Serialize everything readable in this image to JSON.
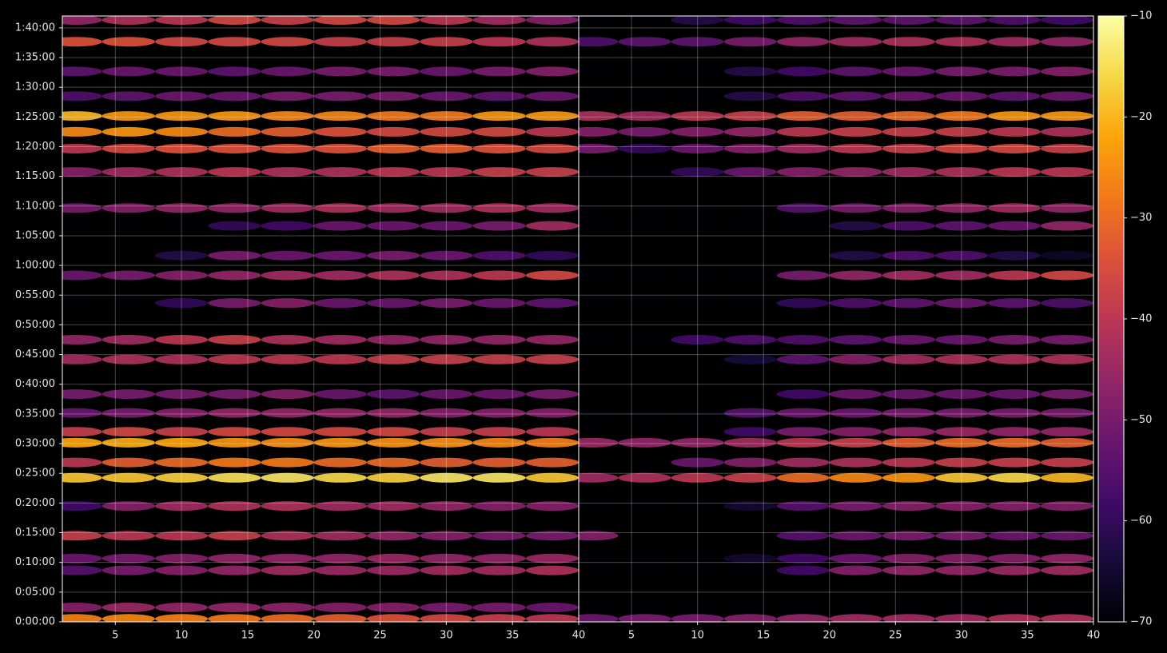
{
  "chart_data": {
    "type": "heatmap",
    "colormap": "inferno",
    "grid": true,
    "x": [
      2,
      6,
      10,
      14,
      18,
      22,
      26,
      30,
      34,
      38
    ],
    "xlim": [
      1,
      40
    ],
    "xticks": [
      5,
      10,
      15,
      20,
      25,
      30,
      35,
      40
    ],
    "y": [
      30,
      145,
      520,
      640,
      870,
      1170,
      1455,
      1610,
      1810,
      1920,
      2110,
      2300,
      2650,
      2850,
      3220,
      3500,
      3700,
      4000,
      4180,
      4545,
      4780,
      4950,
      5110,
      5310,
      5560,
      5860,
      6080
    ],
    "ylim": [
      0,
      6120
    ],
    "yticks": [
      {
        "value": 0,
        "label": "0:00:00"
      },
      {
        "value": 300,
        "label": "0:05:00"
      },
      {
        "value": 600,
        "label": "0:10:00"
      },
      {
        "value": 900,
        "label": "0:15:00"
      },
      {
        "value": 1200,
        "label": "0:20:00"
      },
      {
        "value": 1500,
        "label": "0:25:00"
      },
      {
        "value": 1800,
        "label": "0:30:00"
      },
      {
        "value": 2100,
        "label": "0:35:00"
      },
      {
        "value": 2400,
        "label": "0:40:00"
      },
      {
        "value": 2700,
        "label": "0:45:00"
      },
      {
        "value": 3000,
        "label": "0:50:00"
      },
      {
        "value": 3300,
        "label": "0:55:00"
      },
      {
        "value": 3600,
        "label": "1:00:00"
      },
      {
        "value": 3900,
        "label": "1:05:00"
      },
      {
        "value": 4200,
        "label": "1:10:00"
      },
      {
        "value": 4500,
        "label": "1:15:00"
      },
      {
        "value": 4800,
        "label": "1:20:00"
      },
      {
        "value": 5100,
        "label": "1:25:00"
      },
      {
        "value": 5400,
        "label": "1:30:00"
      },
      {
        "value": 5700,
        "label": "1:35:00"
      },
      {
        "value": 6000,
        "label": "1:40:00"
      }
    ],
    "colorbar": {
      "lim": [
        -70,
        -10
      ],
      "ticks": [
        {
          "value": -70,
          "label": "−70"
        },
        {
          "value": -60,
          "label": "−60"
        },
        {
          "value": -50,
          "label": "−50"
        },
        {
          "value": -40,
          "label": "−40"
        },
        {
          "value": -30,
          "label": "−30"
        },
        {
          "value": -20,
          "label": "−20"
        },
        {
          "value": -10,
          "label": "−10"
        }
      ]
    },
    "panels": [
      {
        "values": [
          [
            -27,
            -26,
            -27,
            -28,
            -30,
            -32,
            -34,
            -36,
            -38,
            -40
          ],
          [
            -48,
            -45,
            -46,
            -46,
            -47,
            -48,
            -48,
            -50,
            -50,
            -52
          ],
          [
            -55,
            -50,
            -48,
            -46,
            -44,
            -45,
            -45,
            -44,
            -44,
            -42
          ],
          [
            -52,
            -50,
            -48,
            -46,
            -46,
            -46,
            -45,
            -46,
            -46,
            -45
          ],
          [
            -38,
            -40,
            -40,
            -38,
            -42,
            -44,
            -46,
            -48,
            -50,
            -50
          ],
          [
            -58,
            -48,
            -44,
            -42,
            -42,
            -44,
            -44,
            -46,
            -48,
            -48
          ],
          [
            -18,
            -18,
            -17,
            -15,
            -14,
            -16,
            -17,
            -14,
            -14,
            -18
          ],
          [
            -40,
            -32,
            -30,
            -28,
            -28,
            -30,
            -30,
            -32,
            -32,
            -32
          ],
          [
            -22,
            -21,
            -22,
            -24,
            -25,
            -24,
            -25,
            -25,
            -26,
            -27
          ],
          [
            -38,
            -36,
            -38,
            -36,
            -36,
            -36,
            -36,
            -38,
            -38,
            -40
          ],
          [
            -52,
            -50,
            -48,
            -46,
            -46,
            -46,
            -46,
            -48,
            -48,
            -48
          ],
          [
            -50,
            -50,
            -50,
            -50,
            -48,
            -52,
            -54,
            -52,
            -52,
            -50
          ],
          [
            -44,
            -42,
            -42,
            -40,
            -40,
            -40,
            -38,
            -38,
            -38,
            -38
          ],
          [
            -46,
            -44,
            -40,
            -38,
            -42,
            -44,
            -46,
            -46,
            -46,
            -46
          ],
          [
            -70,
            -70,
            -60,
            -50,
            -48,
            -52,
            -52,
            -50,
            -52,
            -54
          ],
          [
            -52,
            -50,
            -48,
            -46,
            -44,
            -44,
            -42,
            -42,
            -40,
            -36
          ],
          [
            -70,
            -70,
            -62,
            -50,
            -52,
            -52,
            -50,
            -52,
            -56,
            -60
          ],
          [
            -70,
            -70,
            -70,
            -60,
            -58,
            -52,
            -52,
            -52,
            -50,
            -44
          ],
          [
            -50,
            -48,
            -46,
            -46,
            -44,
            -42,
            -44,
            -44,
            -42,
            -44
          ],
          [
            -48,
            -44,
            -42,
            -40,
            -42,
            -42,
            -40,
            -40,
            -38,
            -38
          ],
          [
            -40,
            -36,
            -34,
            -34,
            -34,
            -34,
            -32,
            -32,
            -34,
            -36
          ],
          [
            -26,
            -24,
            -26,
            -30,
            -32,
            -34,
            -36,
            -36,
            -36,
            -40
          ],
          [
            -20,
            -24,
            -24,
            -24,
            -26,
            -26,
            -28,
            -28,
            -24,
            -24
          ],
          [
            -56,
            -54,
            -52,
            -52,
            -50,
            -50,
            -50,
            -52,
            -54,
            -52
          ],
          [
            -54,
            -52,
            -52,
            -54,
            -52,
            -50,
            -50,
            -52,
            -50,
            -48
          ],
          [
            -34,
            -34,
            -36,
            -36,
            -36,
            -38,
            -38,
            -38,
            -40,
            -42
          ],
          [
            -46,
            -42,
            -40,
            -36,
            -38,
            -36,
            -36,
            -40,
            -44,
            -48
          ]
        ]
      },
      {
        "values": [
          [
            -52,
            -50,
            -50,
            -48,
            -46,
            -44,
            -44,
            -44,
            -42,
            -42
          ],
          [
            -70,
            -70,
            -70,
            -70,
            -70,
            -70,
            -70,
            -70,
            -70,
            -70
          ],
          [
            -70,
            -70,
            -70,
            -70,
            -58,
            -48,
            -46,
            -46,
            -45,
            -44
          ],
          [
            -70,
            -70,
            -70,
            -65,
            -58,
            -52,
            -48,
            -48,
            -48,
            -46
          ],
          [
            -48,
            -70,
            -70,
            -70,
            -55,
            -52,
            -50,
            -50,
            -52,
            -52
          ],
          [
            -70,
            -70,
            -70,
            -65,
            -55,
            -50,
            -48,
            -48,
            -48,
            -48
          ],
          [
            -44,
            -42,
            -40,
            -38,
            -30,
            -26,
            -24,
            -18,
            -16,
            -20
          ],
          [
            -70,
            -70,
            -52,
            -48,
            -44,
            -42,
            -40,
            -38,
            -38,
            -38
          ],
          [
            -45,
            -46,
            -46,
            -44,
            -40,
            -38,
            -32,
            -30,
            -30,
            -32
          ],
          [
            -70,
            -70,
            -70,
            -58,
            -50,
            -48,
            -46,
            -45,
            -46,
            -46
          ],
          [
            -70,
            -70,
            -70,
            -55,
            -52,
            -52,
            -50,
            -50,
            -50,
            -50
          ],
          [
            -70,
            -70,
            -70,
            -70,
            -58,
            -52,
            -52,
            -52,
            -52,
            -50
          ],
          [
            -70,
            -70,
            -70,
            -64,
            -54,
            -48,
            -44,
            -42,
            -42,
            -42
          ],
          [
            -70,
            -70,
            -58,
            -56,
            -56,
            -54,
            -52,
            -52,
            -50,
            -50
          ],
          [
            -70,
            -70,
            -70,
            -70,
            -60,
            -56,
            -54,
            -52,
            -54,
            -56
          ],
          [
            -70,
            -70,
            -70,
            -70,
            -50,
            -46,
            -44,
            -44,
            -40,
            -36
          ],
          [
            -70,
            -70,
            -70,
            -70,
            -70,
            -62,
            -56,
            -56,
            -62,
            -66
          ],
          [
            -70,
            -70,
            -70,
            -70,
            -70,
            -62,
            -56,
            -54,
            -52,
            -46
          ],
          [
            -70,
            -70,
            -70,
            -70,
            -55,
            -50,
            -48,
            -46,
            -44,
            -46
          ],
          [
            -70,
            -70,
            -60,
            -52,
            -48,
            -46,
            -44,
            -42,
            -40,
            -40
          ],
          [
            -50,
            -60,
            -52,
            -48,
            -44,
            -40,
            -38,
            -36,
            -36,
            -38
          ],
          [
            -48,
            -50,
            -48,
            -46,
            -40,
            -38,
            -38,
            -38,
            -40,
            -42
          ],
          [
            -42,
            -44,
            -40,
            -38,
            -32,
            -32,
            -30,
            -28,
            -24,
            -24
          ],
          [
            -70,
            -70,
            -70,
            -62,
            -56,
            -54,
            -52,
            -52,
            -54,
            -52
          ],
          [
            -70,
            -70,
            -70,
            -62,
            -58,
            -54,
            -52,
            -50,
            -50,
            -48
          ],
          [
            -56,
            -54,
            -54,
            -50,
            -46,
            -44,
            -42,
            -42,
            -44,
            -46
          ],
          [
            -70,
            -70,
            -62,
            -58,
            -56,
            -54,
            -54,
            -54,
            -56,
            -58
          ]
        ]
      }
    ]
  }
}
